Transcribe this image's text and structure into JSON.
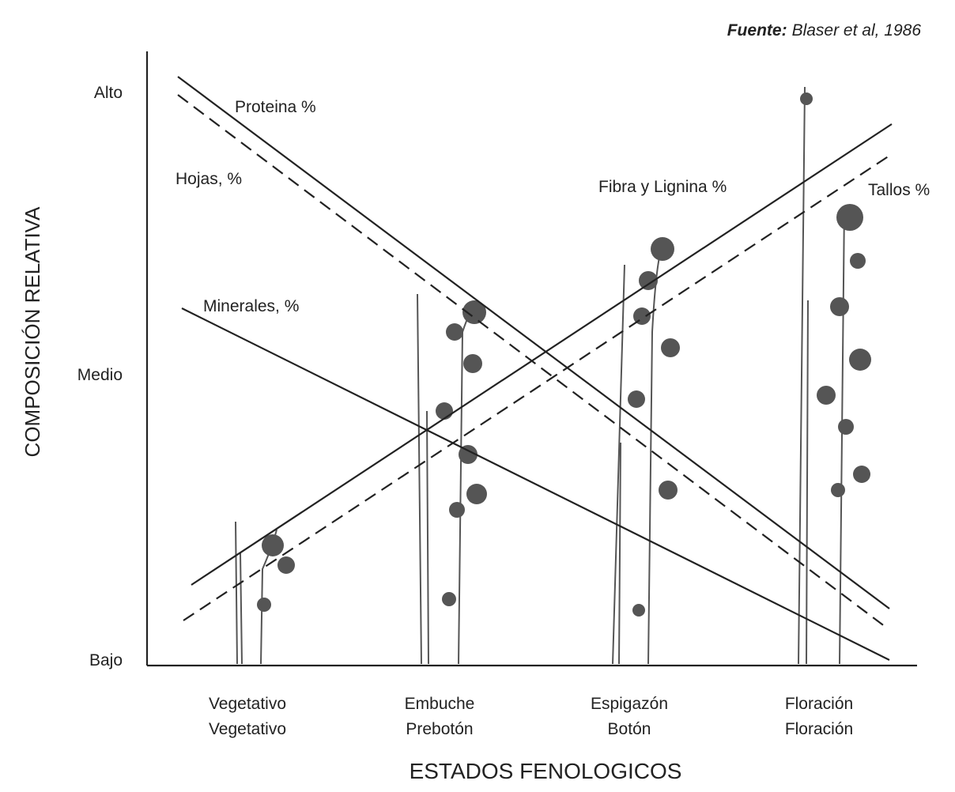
{
  "source": {
    "label": "Fuente:",
    "text": "Blaser et al, 1986"
  },
  "y_axis": {
    "title": "COMPOSICIÓN RELATIVA",
    "ticks": [
      "Alto",
      "Medio",
      "Bajo"
    ]
  },
  "x_axis": {
    "title": "ESTADOS FENOLOGICOS",
    "stages": [
      [
        "Vegetativo",
        "Vegetativo"
      ],
      [
        "Embuche",
        "Prebotón"
      ],
      [
        "Espigazón",
        "Botón"
      ],
      [
        "Floración",
        "Floración"
      ]
    ]
  },
  "lines": [
    {
      "label": "Proteina %"
    },
    {
      "label": "Hojas, %"
    },
    {
      "label": "Minerales, %"
    },
    {
      "label": "Fibra y Lignina %"
    },
    {
      "label": "Tallos %"
    }
  ]
}
